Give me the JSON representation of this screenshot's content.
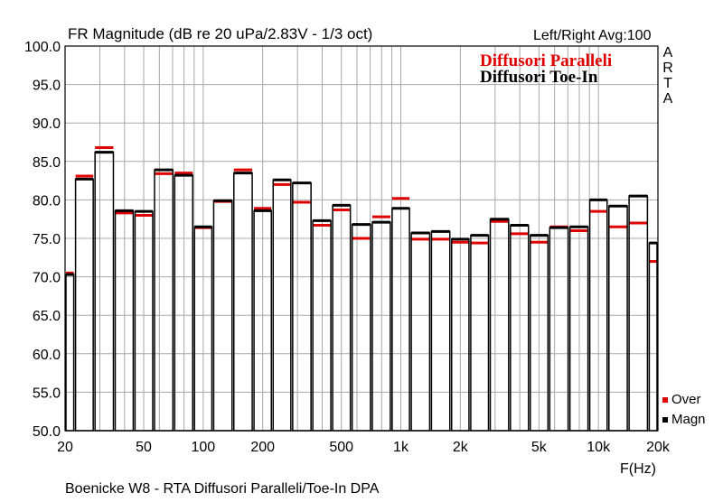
{
  "header": {
    "title": "FR Magnitude (dB re 20 uPa/2.83V - 1/3 oct)",
    "settings": "Left/Right  Avg:100"
  },
  "legend_overlay": {
    "line1": "Diffusori Paralleli",
    "line2": "Diffusori Toe-In",
    "line1_color": "#e00000",
    "line2_color": "#000000"
  },
  "logo": {
    "letters": [
      "A",
      "R",
      "T",
      "A"
    ]
  },
  "keys": [
    {
      "label": "Over",
      "color": "#e00000"
    },
    {
      "label": "Magn",
      "color": "#000000"
    }
  ],
  "x_unit": "F(Hz)",
  "footer": "Boenicke W8 - RTA Diffusori Paralleli/Toe-In      DPA",
  "chart_data": {
    "type": "bar",
    "title": "FR Magnitude (dB re 20 uPa/2.83V - 1/3 oct)",
    "xlabel": "F(Hz)",
    "ylabel": "",
    "xscale": "log",
    "xlim": [
      20,
      20000
    ],
    "ylim": [
      50,
      100
    ],
    "grid": true,
    "yticks": [
      "100.0",
      "95.0",
      "90.0",
      "85.0",
      "80.0",
      "75.0",
      "70.0",
      "65.0",
      "60.0",
      "55.0",
      "50.0"
    ],
    "xticks": [
      {
        "f": 20,
        "label": "20"
      },
      {
        "f": 50,
        "label": "50"
      },
      {
        "f": 100,
        "label": "100"
      },
      {
        "f": 200,
        "label": "200"
      },
      {
        "f": 500,
        "label": "500"
      },
      {
        "f": 1000,
        "label": "1k"
      },
      {
        "f": 2000,
        "label": "2k"
      },
      {
        "f": 5000,
        "label": "5k"
      },
      {
        "f": 10000,
        "label": "10k"
      },
      {
        "f": 20000,
        "label": "20k"
      }
    ],
    "categories": [
      20,
      25,
      31.5,
      40,
      50,
      63,
      80,
      100,
      125,
      160,
      200,
      250,
      315,
      400,
      500,
      630,
      800,
      1000,
      1250,
      1600,
      2000,
      2500,
      3150,
      4000,
      5000,
      6300,
      8000,
      10000,
      12500,
      16000,
      20000
    ],
    "series": [
      {
        "name": "Over",
        "color": "#e00000",
        "values": [
          70.5,
          83.1,
          86.8,
          78.3,
          78.0,
          83.4,
          83.5,
          76.4,
          79.8,
          83.9,
          78.9,
          82.0,
          79.7,
          76.7,
          78.7,
          75.0,
          77.8,
          80.2,
          74.9,
          74.9,
          74.5,
          74.4,
          77.2,
          75.6,
          74.5,
          76.5,
          76.0,
          78.5,
          76.5,
          77.0,
          72.0
        ]
      },
      {
        "name": "Magn",
        "color": "#000000",
        "values": [
          70.3,
          82.7,
          86.2,
          78.6,
          78.5,
          83.9,
          83.2,
          76.5,
          79.9,
          83.5,
          78.6,
          82.6,
          82.2,
          77.3,
          79.3,
          76.8,
          77.1,
          78.9,
          75.7,
          75.9,
          74.9,
          75.4,
          77.5,
          76.7,
          75.4,
          76.4,
          76.5,
          80.0,
          79.2,
          80.5,
          74.4
        ]
      }
    ]
  }
}
